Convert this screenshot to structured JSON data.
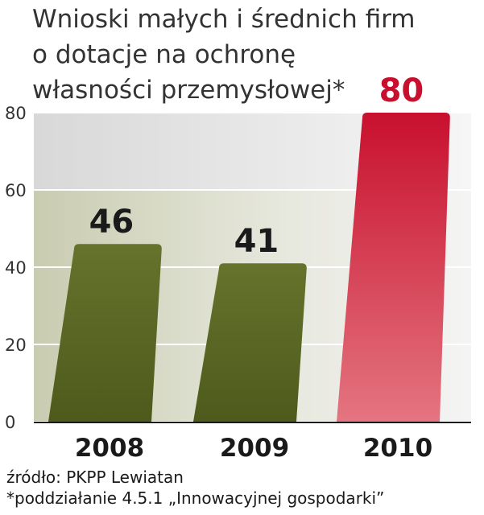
{
  "title_lines": [
    "Wnioski małych i średnich firm",
    "o dotacje na ochronę",
    "własności przemysłowej*"
  ],
  "chart_data": {
    "type": "bar",
    "categories": [
      "2008",
      "2009",
      "2010"
    ],
    "values": [
      46,
      41,
      80
    ],
    "value_labels": [
      "46",
      "41",
      "80"
    ],
    "ylim": [
      0,
      80
    ],
    "yticks": [
      "0",
      "20",
      "40",
      "60",
      "80"
    ],
    "grid": true,
    "colors": {
      "bar_dark": "#4d5a1c",
      "bar_dark_top": "#66732c",
      "bar_red_top": "#c8102e",
      "bar_red_bottom": "#e47580",
      "highlight_label": "#c8102e",
      "label": "#1a1a1a"
    }
  },
  "source_lines": [
    "źródło: PKPP Lewiatan",
    "*poddziałanie 4.5.1 „Innowacyjnej gospodarki”"
  ]
}
